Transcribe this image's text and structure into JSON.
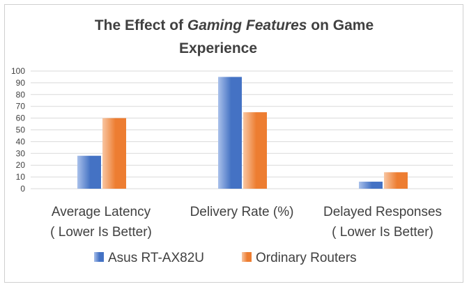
{
  "chart_data": {
    "type": "bar",
    "title_parts": [
      {
        "text": "The Effect of ",
        "italic": false
      },
      {
        "text": "Gaming Features",
        "italic": true
      },
      {
        "text": " on Game",
        "italic": false
      }
    ],
    "title_line2": "Experience",
    "categories": [
      [
        "Average Latency",
        "( Lower Is Better)"
      ],
      [
        "Delivery Rate (%)"
      ],
      [
        "Delayed Responses",
        "( Lower Is Better)"
      ]
    ],
    "series": [
      {
        "name": "Asus RT-AX82U",
        "values": [
          28,
          95,
          6
        ],
        "color": "#4472c4",
        "color_light": "#a9c0ea"
      },
      {
        "name": "Ordinary Routers",
        "values": [
          60,
          65,
          14
        ],
        "color": "#ed7d31",
        "color_light": "#f8c6a2"
      }
    ],
    "ylim": [
      0,
      100
    ],
    "yticks": [
      0,
      10,
      20,
      30,
      40,
      50,
      60,
      70,
      80,
      90,
      100
    ],
    "grid": true,
    "legend_position": "bottom"
  }
}
